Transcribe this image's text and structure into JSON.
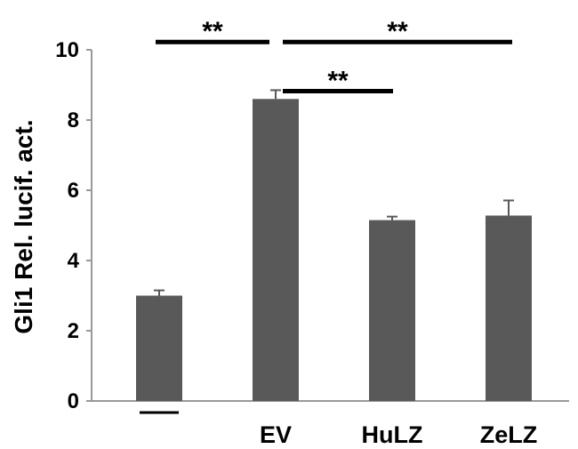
{
  "chart_data": {
    "type": "bar",
    "title": "",
    "xlabel": "",
    "ylabel": "Gli1 Rel. lucif. act.",
    "categories": [
      "—",
      "EV",
      "HuLZ",
      "ZeLZ"
    ],
    "values": [
      3.0,
      8.6,
      5.15,
      5.28
    ],
    "errors": [
      0.15,
      0.25,
      0.1,
      0.43
    ],
    "ylim": [
      0,
      10
    ],
    "yticks": [
      "0",
      "2",
      "4",
      "6",
      "8",
      "10"
    ],
    "grid": false,
    "bar_color": "#595959",
    "significance": [
      {
        "from": 0,
        "to": 1,
        "label": "**",
        "level": 10.4
      },
      {
        "from": 1,
        "to": 3,
        "label": "**",
        "level": 10.4
      },
      {
        "from": 1,
        "to": 2,
        "label": "**",
        "level": 9.0
      }
    ]
  }
}
